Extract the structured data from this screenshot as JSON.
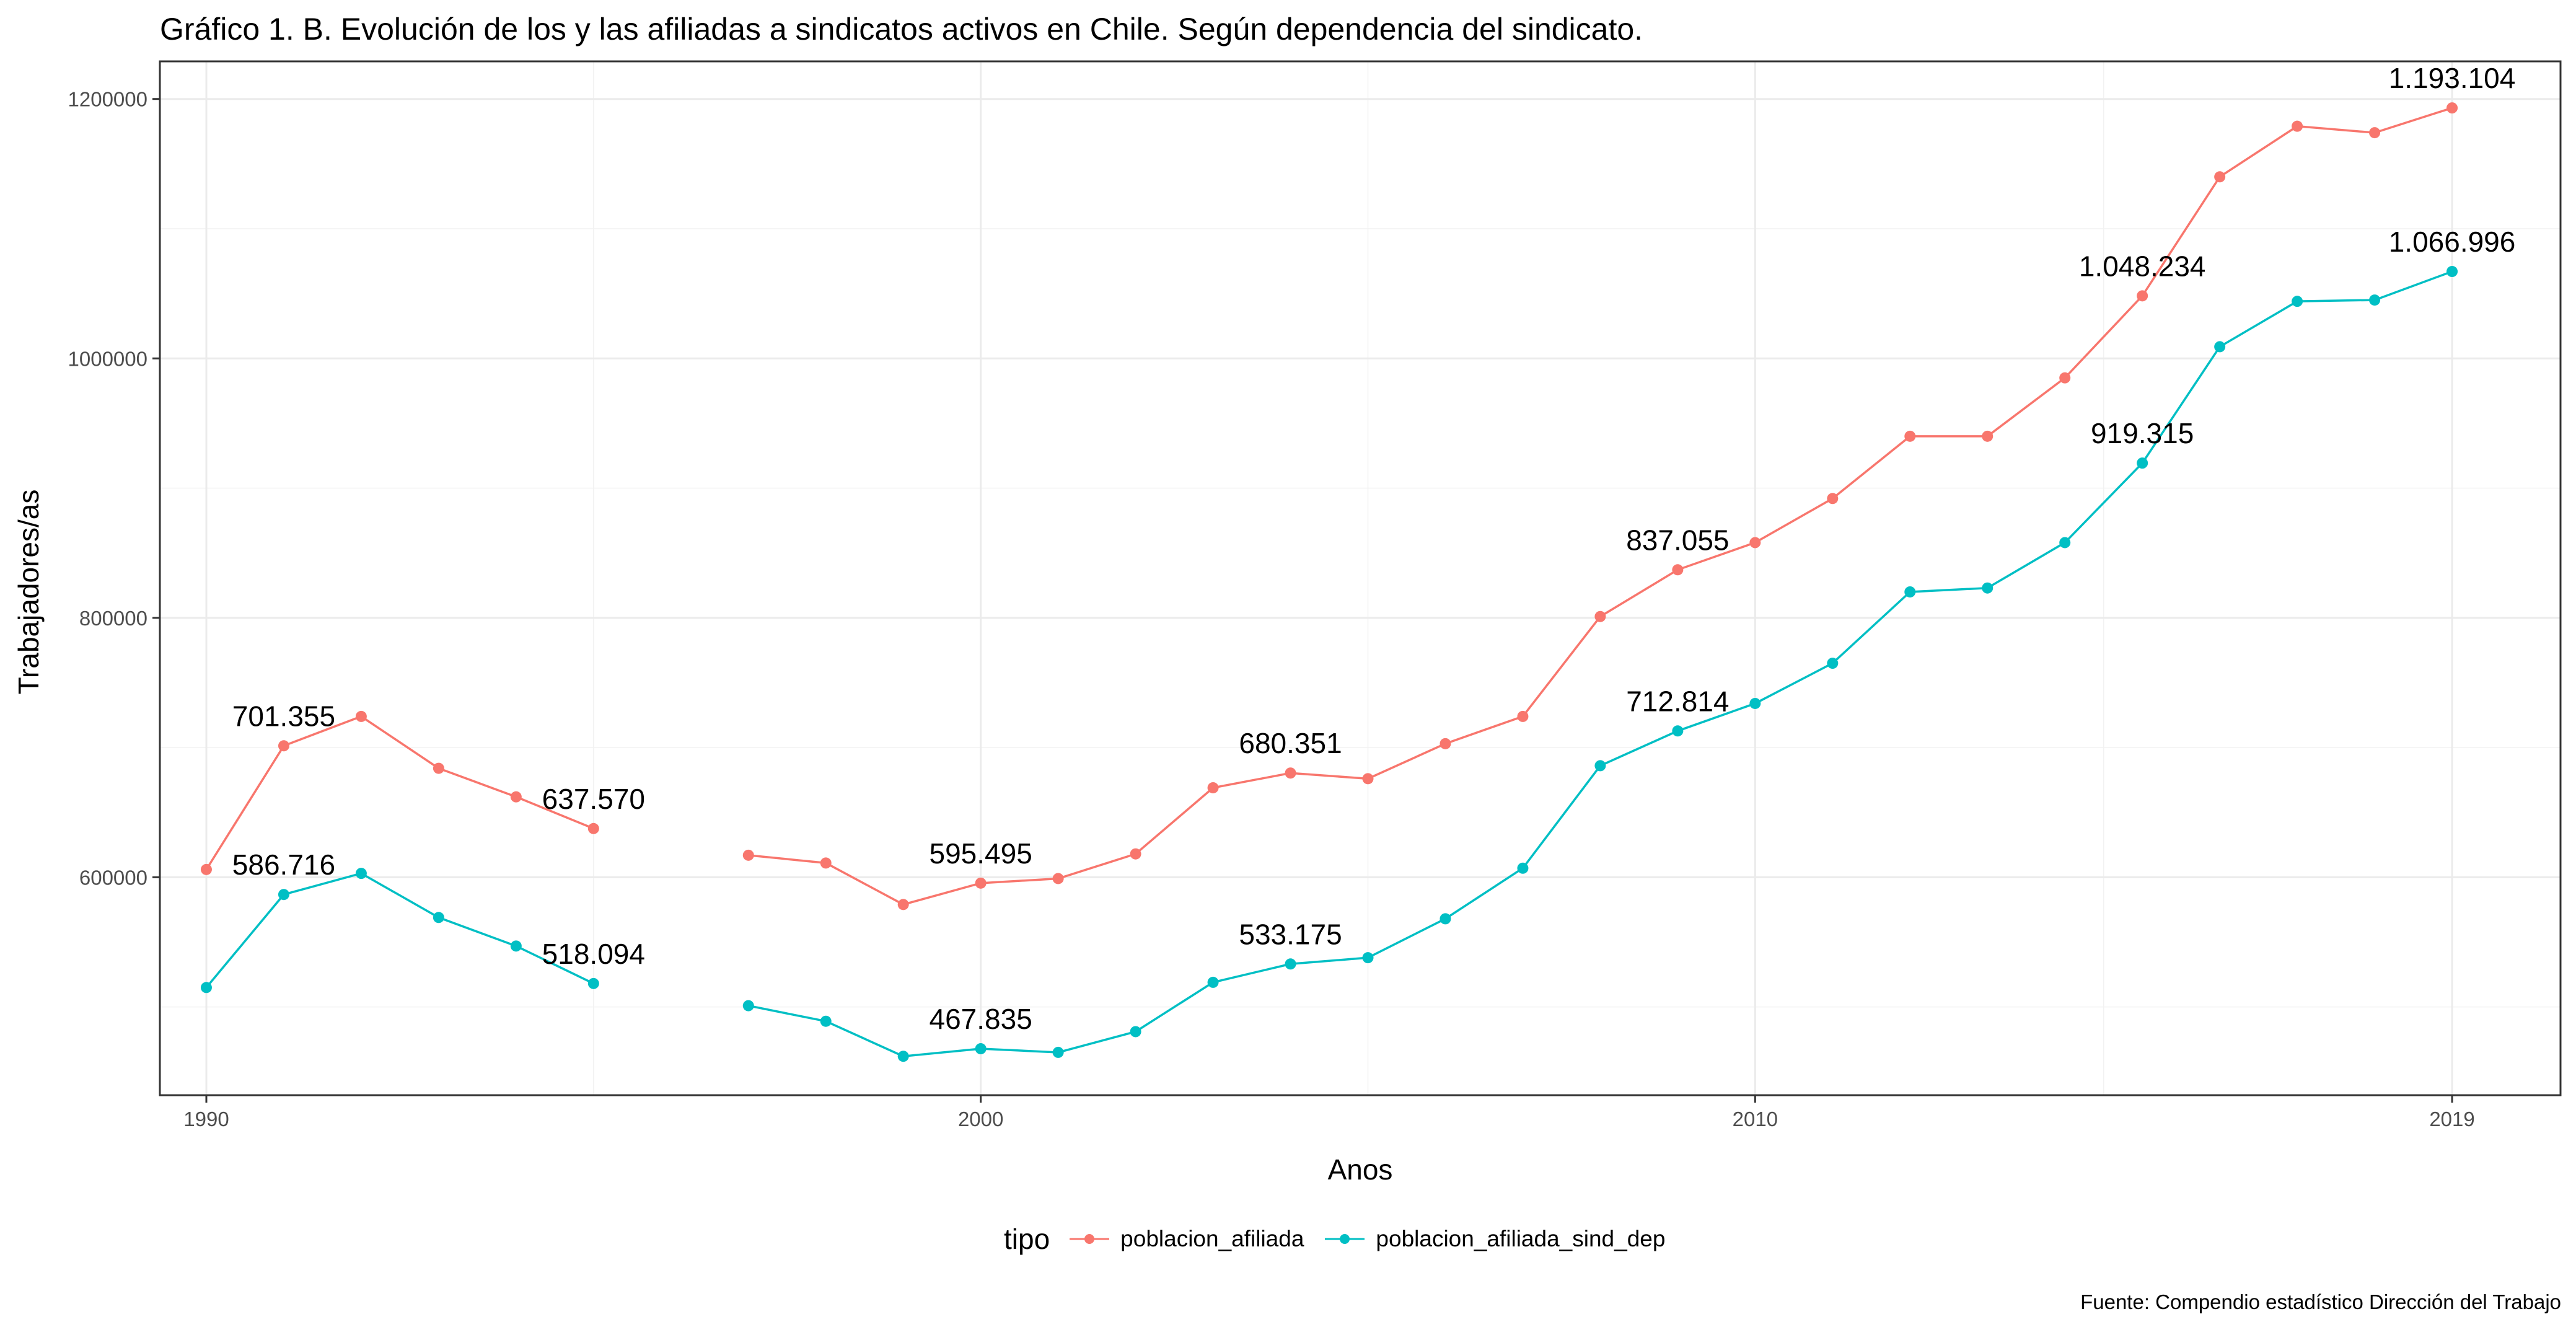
{
  "chart_data": {
    "type": "line",
    "title": "Gráfico 1. B. Evolución de los y las afiliadas a sindicatos activos en Chile. Según dependencia del sindicato.",
    "xlabel": "Anos",
    "ylabel": "Trabajadores/as",
    "caption": "Fuente: Compendio estadístico Dirección del Trabajo",
    "xlim": [
      1989.4,
      2020.4
    ],
    "ylim": [
      432000,
      1229000
    ],
    "x_ticks": [
      1990,
      2000,
      2010,
      2019
    ],
    "x_tick_labels": [
      "1990",
      "2000",
      "2010",
      "2019"
    ],
    "y_ticks": [
      600000,
      800000,
      1000000,
      1200000
    ],
    "y_tick_labels": [
      "600000",
      "800000",
      "1000000",
      "1200000"
    ],
    "grid": true,
    "legend": {
      "title": "tipo",
      "position": "bottom"
    },
    "series": [
      {
        "name": "poblacion_afiliada",
        "color": "#F8766D",
        "x": [
          1990,
          1991,
          1992,
          1993,
          1994,
          1995,
          1996,
          1997,
          1998,
          1999,
          2000,
          2001,
          2002,
          2003,
          2004,
          2005,
          2006,
          2007,
          2008,
          2009,
          2010,
          2011,
          2012,
          2013,
          2014,
          2015,
          2016,
          2017,
          2018,
          2019
        ],
        "values": [
          606000,
          701355,
          724000,
          684000,
          662000,
          637570,
          null,
          617000,
          611000,
          579000,
          595495,
          599000,
          618000,
          669000,
          680351,
          676000,
          703000,
          724000,
          801000,
          837055,
          858000,
          892000,
          940000,
          940000,
          985000,
          1048234,
          1140000,
          1179000,
          1174000,
          1193104
        ]
      },
      {
        "name": "poblacion_afiliada_sind_dep",
        "color": "#00BFC4",
        "x": [
          1990,
          1991,
          1992,
          1993,
          1994,
          1995,
          1996,
          1997,
          1998,
          1999,
          2000,
          2001,
          2002,
          2003,
          2004,
          2005,
          2006,
          2007,
          2008,
          2009,
          2010,
          2011,
          2012,
          2013,
          2014,
          2015,
          2016,
          2017,
          2018,
          2019
        ],
        "values": [
          515000,
          586716,
          603000,
          569000,
          547000,
          518094,
          null,
          501000,
          489000,
          462000,
          467835,
          465000,
          481000,
          519000,
          533175,
          538000,
          568000,
          607000,
          686000,
          712814,
          734000,
          765000,
          820000,
          823000,
          858000,
          919315,
          1009000,
          1044000,
          1045000,
          1066996
        ]
      }
    ],
    "annotations": [
      {
        "series": 0,
        "x": 1991,
        "text": "701.355"
      },
      {
        "series": 0,
        "x": 1995,
        "text": "637.570"
      },
      {
        "series": 0,
        "x": 2000,
        "text": "595.495"
      },
      {
        "series": 0,
        "x": 2004,
        "text": "680.351"
      },
      {
        "series": 0,
        "x": 2009,
        "text": "837.055"
      },
      {
        "series": 0,
        "x": 2015,
        "text": "1.048.234"
      },
      {
        "series": 0,
        "x": 2019,
        "text": "1.193.104"
      },
      {
        "series": 1,
        "x": 1991,
        "text": "586.716"
      },
      {
        "series": 1,
        "x": 1995,
        "text": "518.094"
      },
      {
        "series": 1,
        "x": 2000,
        "text": "467.835"
      },
      {
        "series": 1,
        "x": 2004,
        "text": "533.175"
      },
      {
        "series": 1,
        "x": 2009,
        "text": "712.814"
      },
      {
        "series": 1,
        "x": 2015,
        "text": "919.315"
      },
      {
        "series": 1,
        "x": 2019,
        "text": "1.066.996"
      }
    ]
  }
}
